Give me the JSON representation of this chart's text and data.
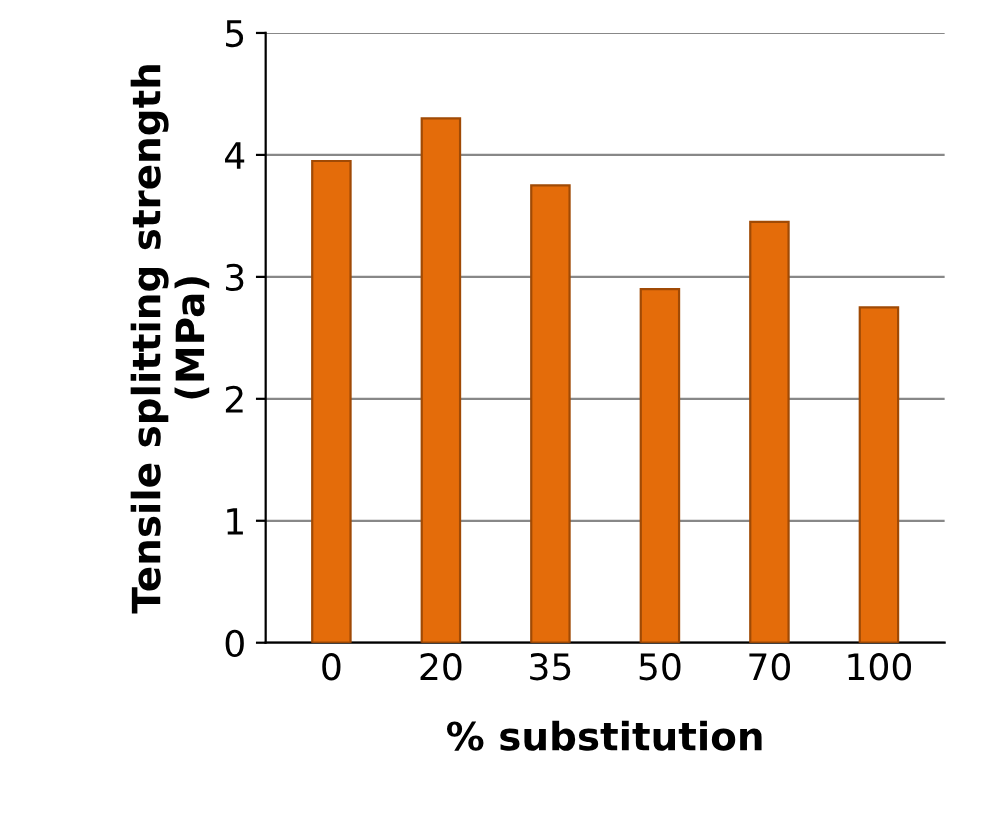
{
  "chart_data": {
    "type": "bar",
    "xlabel": "% substitution",
    "ylabel": "Tensile splitting strength\n(MPa)",
    "categories": [
      "0",
      "20",
      "35",
      "50",
      "70",
      "100"
    ],
    "values": [
      3.95,
      4.3,
      3.75,
      2.9,
      3.45,
      2.75
    ],
    "color": "#e46c0a",
    "ylim": [
      0,
      5
    ],
    "yticks": [
      0,
      1,
      2,
      3,
      4,
      5
    ],
    "grid": "y"
  }
}
